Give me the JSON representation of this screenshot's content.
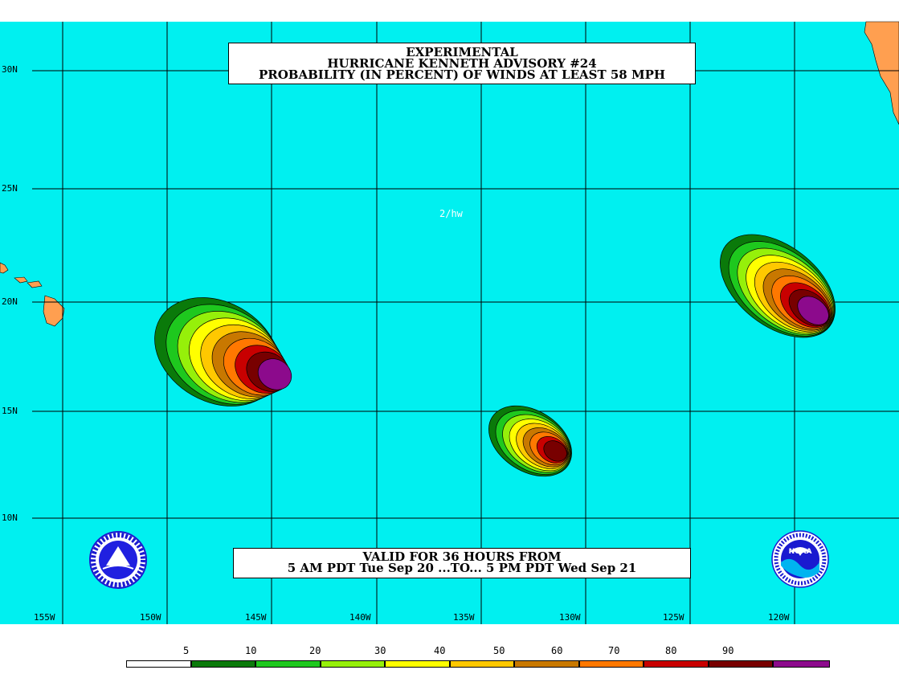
{
  "title": {
    "line1": "EXPERIMENTAL",
    "line2": "HURRICANE KENNETH ADVISORY #24",
    "line3": "PROBABILITY (IN PERCENT) OF WINDS AT LEAST 58 MPH"
  },
  "valid_box": {
    "line1": "VALID FOR 36 HOURS FROM",
    "line2": "5 AM PDT Tue Sep 20 ...TO... 5 PM PDT Wed Sep 21"
  },
  "forecaster_initials": "2/hw",
  "latitude_labels": [
    "30N",
    "25N",
    "20N",
    "15N",
    "10N"
  ],
  "longitude_labels": [
    "155W",
    "150W",
    "145W",
    "140W",
    "135W",
    "130W",
    "125W",
    "120W"
  ],
  "legend": {
    "values": [
      "5",
      "10",
      "20",
      "30",
      "40",
      "50",
      "60",
      "70",
      "80",
      "90"
    ],
    "colors": [
      "#ffffff",
      "#0a7a0a",
      "#1ec81e",
      "#96f00a",
      "#ffff00",
      "#ffc800",
      "#c87800",
      "#ff7800",
      "#c80000",
      "#780000",
      "#8c0a8c"
    ]
  },
  "colors": {
    "ocean": "#00f0f0",
    "land": "#ff9f50"
  },
  "logos": {
    "left": "nws-seal-icon",
    "right": "noaa-logo-icon",
    "noaa_text": "NOAA"
  }
}
